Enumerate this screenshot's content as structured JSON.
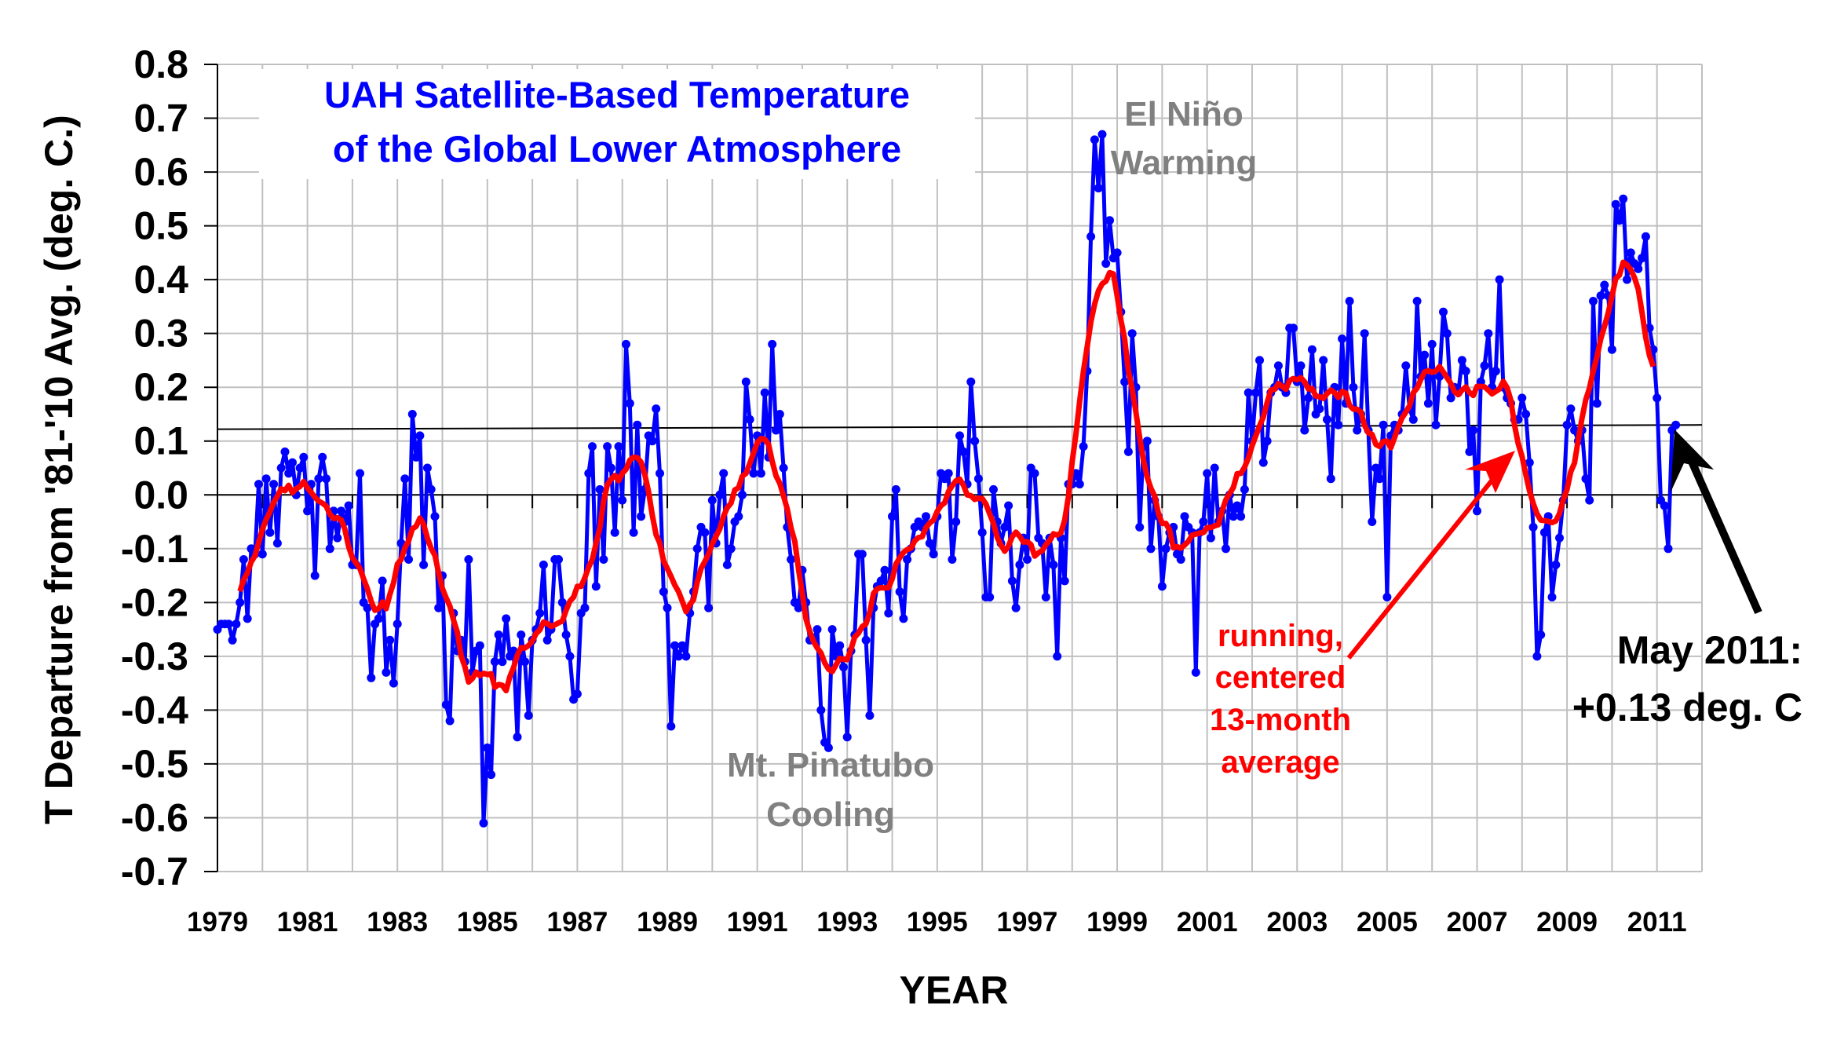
{
  "chart_data": {
    "type": "line",
    "title": [
      "UAH Satellite-Based Temperature",
      "of the Global Lower Atmosphere"
    ],
    "xlabel": "YEAR",
    "ylabel": "T Departure from '81-'10 Avg. (deg. C.)",
    "xlim": [
      1979,
      2012
    ],
    "ylim": [
      -0.7,
      0.8
    ],
    "grid": true,
    "y_ticks": [
      "0.8",
      "0.7",
      "0.6",
      "0.5",
      "0.4",
      "0.3",
      "0.2",
      "0.1",
      "0.0",
      "-0.1",
      "-0.2",
      "-0.3",
      "-0.4",
      "-0.5",
      "-0.6",
      "-0.7"
    ],
    "y_tick_values": [
      0.8,
      0.7,
      0.6,
      0.5,
      0.4,
      0.3,
      0.2,
      0.1,
      0.0,
      -0.1,
      -0.2,
      -0.3,
      -0.4,
      -0.5,
      -0.6,
      -0.7
    ],
    "x_ticks": [
      "1979",
      "1981",
      "1983",
      "1985",
      "1987",
      "1989",
      "1991",
      "1993",
      "1995",
      "1997",
      "1999",
      "2001",
      "2003",
      "2005",
      "2007",
      "2009",
      "2011"
    ],
    "x_tick_values": [
      1979,
      1981,
      1983,
      1985,
      1987,
      1989,
      1991,
      1993,
      1995,
      1997,
      1999,
      2001,
      2003,
      2005,
      2007,
      2009,
      2011
    ],
    "reference_line": {
      "start": [
        1979,
        0.122
      ],
      "end": [
        2012,
        0.13
      ]
    },
    "series": [
      {
        "name": "Monthly anomaly",
        "color": "#0000ff",
        "start": "1979-01",
        "values": [
          -0.25,
          -0.24,
          -0.24,
          -0.24,
          -0.27,
          -0.24,
          -0.2,
          -0.12,
          -0.23,
          -0.1,
          -0.11,
          0.02,
          -0.11,
          0.03,
          -0.07,
          0.02,
          -0.09,
          0.05,
          0.08,
          0.04,
          0.06,
          0.0,
          0.05,
          0.07,
          -0.03,
          0.02,
          -0.15,
          0.03,
          0.07,
          0.03,
          -0.1,
          -0.03,
          -0.08,
          -0.03,
          -0.05,
          -0.02,
          -0.13,
          -0.13,
          0.04,
          -0.2,
          -0.21,
          -0.34,
          -0.24,
          -0.23,
          -0.16,
          -0.33,
          -0.27,
          -0.35,
          -0.24,
          -0.09,
          0.03,
          -0.12,
          0.15,
          0.07,
          0.11,
          -0.13,
          0.05,
          0.01,
          -0.04,
          -0.21,
          -0.15,
          -0.39,
          -0.42,
          -0.22,
          -0.29,
          -0.27,
          -0.31,
          -0.12,
          -0.33,
          -0.29,
          -0.28,
          -0.61,
          -0.47,
          -0.52,
          -0.31,
          -0.26,
          -0.31,
          -0.23,
          -0.3,
          -0.29,
          -0.45,
          -0.26,
          -0.31,
          -0.41,
          -0.27,
          -0.25,
          -0.22,
          -0.13,
          -0.27,
          -0.25,
          -0.12,
          -0.12,
          -0.2,
          -0.26,
          -0.3,
          -0.38,
          -0.37,
          -0.22,
          -0.21,
          0.04,
          0.09,
          -0.17,
          0.01,
          -0.12,
          0.09,
          0.05,
          -0.07,
          0.09,
          -0.01,
          0.28,
          0.17,
          -0.07,
          0.13,
          -0.04,
          0.01,
          0.11,
          0.1,
          0.16,
          0.04,
          -0.18,
          -0.21,
          -0.43,
          -0.28,
          -0.3,
          -0.28,
          -0.3,
          -0.22,
          -0.18,
          -0.1,
          -0.06,
          -0.07,
          -0.21,
          -0.01,
          -0.09,
          0.0,
          0.04,
          -0.13,
          -0.1,
          -0.05,
          -0.04,
          0.0,
          0.21,
          0.14,
          0.04,
          0.11,
          0.04,
          0.19,
          0.07,
          0.28,
          0.12,
          0.15,
          0.05,
          -0.06,
          -0.12,
          -0.2,
          -0.21,
          -0.14,
          -0.2,
          -0.27,
          -0.27,
          -0.25,
          -0.4,
          -0.46,
          -0.47,
          -0.25,
          -0.3,
          -0.28,
          -0.32,
          -0.45,
          -0.29,
          -0.26,
          -0.11,
          -0.11,
          -0.27,
          -0.41,
          -0.21,
          -0.17,
          -0.16,
          -0.14,
          -0.22,
          -0.04,
          0.01,
          -0.18,
          -0.23,
          -0.12,
          -0.1,
          -0.06,
          -0.05,
          -0.06,
          -0.04,
          -0.09,
          -0.11,
          -0.04,
          0.04,
          0.03,
          0.04,
          -0.12,
          -0.05,
          0.11,
          0.08,
          0.02,
          0.21,
          0.1,
          0.03,
          -0.07,
          -0.19,
          -0.19,
          0.01,
          -0.05,
          -0.09,
          -0.06,
          -0.02,
          -0.16,
          -0.21,
          -0.13,
          -0.08,
          -0.12,
          0.05,
          0.04,
          -0.08,
          -0.09,
          -0.19,
          -0.08,
          -0.13,
          -0.3,
          -0.08,
          -0.16,
          0.02,
          0.02,
          0.04,
          0.02,
          0.09,
          0.23,
          0.48,
          0.66,
          0.57,
          0.67,
          0.43,
          0.51,
          0.44,
          0.45,
          0.34,
          0.21,
          0.08,
          0.3,
          0.2,
          -0.06,
          0.09,
          0.1,
          -0.1,
          -0.01,
          -0.04,
          -0.17,
          -0.1,
          -0.07,
          -0.06,
          -0.11,
          -0.12,
          -0.04,
          -0.06,
          -0.07,
          -0.33,
          -0.07,
          -0.05,
          0.04,
          -0.08,
          0.05,
          -0.05,
          -0.03,
          -0.1,
          0.0,
          -0.04,
          -0.02,
          -0.04,
          0.01,
          0.19,
          0.1,
          0.19,
          0.25,
          0.06,
          0.1,
          0.19,
          0.2,
          0.24,
          0.2,
          0.19,
          0.31,
          0.31,
          0.21,
          0.24,
          0.12,
          0.18,
          0.27,
          0.15,
          0.16,
          0.25,
          0.14,
          0.03,
          0.2,
          0.13,
          0.29,
          0.17,
          0.36,
          0.2,
          0.12,
          0.15,
          0.3,
          0.12,
          -0.05,
          0.05,
          0.03,
          0.13,
          -0.19,
          0.11,
          0.13,
          0.12,
          0.15,
          0.24,
          0.16,
          0.14,
          0.36,
          0.22,
          0.26,
          0.17,
          0.28,
          0.13,
          0.22,
          0.34,
          0.3,
          0.18,
          0.2,
          0.19,
          0.25,
          0.23,
          0.08,
          0.12,
          -0.03,
          0.21,
          0.24,
          0.3,
          0.2,
          0.23,
          0.4,
          0.2,
          0.18,
          0.17,
          0.14,
          0.14,
          0.18,
          0.15,
          0.06,
          -0.06,
          -0.3,
          -0.26,
          -0.07,
          -0.04,
          -0.19,
          -0.13,
          -0.08,
          -0.01,
          0.13,
          0.16,
          0.12,
          0.1,
          0.12,
          0.03,
          -0.01,
          0.36,
          0.17,
          0.37,
          0.39,
          0.37,
          0.27,
          0.54,
          0.51,
          0.55,
          0.4,
          0.45,
          0.43,
          0.42,
          0.44,
          0.48,
          0.31,
          0.27,
          0.18,
          -0.01,
          -0.02,
          -0.1,
          0.12,
          0.13
        ]
      },
      {
        "name": "Running, centered 13-month average",
        "color": "#ff0000",
        "derived_from": "Monthly anomaly",
        "window_months": 13
      }
    ],
    "annotations": [
      {
        "id": "el-nino",
        "lines": [
          "El Niño",
          "Warming"
        ],
        "color": "#808080"
      },
      {
        "id": "pinatubo",
        "lines": [
          "Mt. Pinatubo",
          "Cooling"
        ],
        "color": "#808080"
      },
      {
        "id": "running-avg",
        "lines": [
          "running,",
          "centered",
          "13-month",
          "average"
        ],
        "color": "#ff0000"
      },
      {
        "id": "latest",
        "lines": [
          "May 2011:",
          "+0.13 deg. C"
        ],
        "color": "#000000"
      }
    ]
  }
}
